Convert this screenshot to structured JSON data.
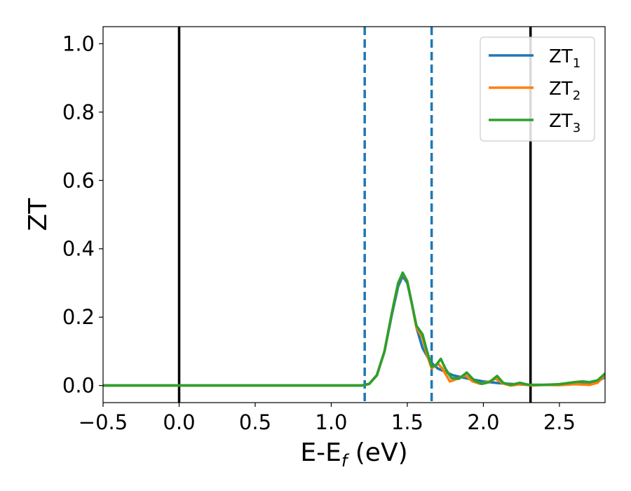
{
  "chart_data": {
    "type": "line",
    "title": "",
    "xlabel": {
      "main": "E-E",
      "sub": "f",
      "unit": " (eV)"
    },
    "ylabel": "ZT",
    "xlim": [
      -0.5,
      2.8
    ],
    "ylim": [
      -0.05,
      1.05
    ],
    "x_ticks": [
      -0.5,
      0.0,
      0.5,
      1.0,
      1.5,
      2.0,
      2.5
    ],
    "x_tick_labels": [
      "−0.5",
      "0.0",
      "0.5",
      "1.0",
      "1.5",
      "2.0",
      "2.5"
    ],
    "y_ticks": [
      0.0,
      0.2,
      0.4,
      0.6,
      0.8,
      1.0
    ],
    "y_tick_labels": [
      "0.0",
      "0.2",
      "0.4",
      "0.6",
      "0.8",
      "1.0"
    ],
    "grid": false,
    "legend_position": "top-right",
    "vlines": [
      {
        "x": 0.0,
        "style": "solid",
        "color": "#000000"
      },
      {
        "x": 2.31,
        "style": "solid",
        "color": "#000000"
      },
      {
        "x": 1.22,
        "style": "dashed",
        "color": "#1f77b4"
      },
      {
        "x": 1.66,
        "style": "dashed",
        "color": "#1f77b4"
      }
    ],
    "series": [
      {
        "name": "ZT",
        "sub": "1",
        "color": "#1f77b4",
        "points": [
          [
            -0.5,
            0
          ],
          [
            1.2,
            0
          ],
          [
            1.25,
            0.005
          ],
          [
            1.3,
            0.03
          ],
          [
            1.35,
            0.1
          ],
          [
            1.4,
            0.21
          ],
          [
            1.44,
            0.29
          ],
          [
            1.47,
            0.32
          ],
          [
            1.5,
            0.3
          ],
          [
            1.53,
            0.24
          ],
          [
            1.56,
            0.17
          ],
          [
            1.6,
            0.11
          ],
          [
            1.65,
            0.07
          ],
          [
            1.7,
            0.05
          ],
          [
            1.8,
            0.03
          ],
          [
            1.9,
            0.02
          ],
          [
            2.0,
            0.012
          ],
          [
            2.1,
            0.007
          ],
          [
            2.2,
            0.004
          ],
          [
            2.3,
            0.002
          ],
          [
            2.4,
            0.002
          ],
          [
            2.5,
            0.003
          ],
          [
            2.6,
            0.005
          ],
          [
            2.7,
            0.008
          ],
          [
            2.75,
            0.012
          ],
          [
            2.8,
            0.025
          ]
        ]
      },
      {
        "name": "ZT",
        "sub": "2",
        "color": "#ff7f0e",
        "points": [
          [
            -0.5,
            0
          ],
          [
            1.2,
            0
          ],
          [
            1.25,
            0.005
          ],
          [
            1.3,
            0.03
          ],
          [
            1.35,
            0.1
          ],
          [
            1.4,
            0.215
          ],
          [
            1.44,
            0.3
          ],
          [
            1.47,
            0.328
          ],
          [
            1.5,
            0.305
          ],
          [
            1.53,
            0.24
          ],
          [
            1.56,
            0.17
          ],
          [
            1.6,
            0.14
          ],
          [
            1.63,
            0.09
          ],
          [
            1.66,
            0.05
          ],
          [
            1.7,
            0.065
          ],
          [
            1.73,
            0.05
          ],
          [
            1.78,
            0.012
          ],
          [
            1.83,
            0.02
          ],
          [
            1.88,
            0.03
          ],
          [
            1.93,
            0.012
          ],
          [
            1.98,
            0.005
          ],
          [
            2.03,
            0.01
          ],
          [
            2.08,
            0.02
          ],
          [
            2.13,
            0.006
          ],
          [
            2.18,
            0.0
          ],
          [
            2.25,
            0.004
          ],
          [
            2.32,
            0.0
          ],
          [
            2.4,
            0.002
          ],
          [
            2.5,
            0.001
          ],
          [
            2.6,
            0.004
          ],
          [
            2.7,
            0.002
          ],
          [
            2.75,
            0.008
          ],
          [
            2.8,
            0.03
          ]
        ]
      },
      {
        "name": "ZT",
        "sub": "3",
        "color": "#2ca02c",
        "points": [
          [
            -0.5,
            0
          ],
          [
            1.2,
            0
          ],
          [
            1.25,
            0.005
          ],
          [
            1.3,
            0.03
          ],
          [
            1.35,
            0.1
          ],
          [
            1.4,
            0.215
          ],
          [
            1.44,
            0.3
          ],
          [
            1.47,
            0.33
          ],
          [
            1.5,
            0.305
          ],
          [
            1.53,
            0.24
          ],
          [
            1.56,
            0.175
          ],
          [
            1.6,
            0.15
          ],
          [
            1.63,
            0.1
          ],
          [
            1.66,
            0.055
          ],
          [
            1.69,
            0.06
          ],
          [
            1.72,
            0.078
          ],
          [
            1.75,
            0.05
          ],
          [
            1.79,
            0.022
          ],
          [
            1.84,
            0.02
          ],
          [
            1.89,
            0.038
          ],
          [
            1.94,
            0.015
          ],
          [
            1.99,
            0.005
          ],
          [
            2.04,
            0.01
          ],
          [
            2.09,
            0.028
          ],
          [
            2.13,
            0.008
          ],
          [
            2.18,
            0.002
          ],
          [
            2.24,
            0.008
          ],
          [
            2.3,
            0.002
          ],
          [
            2.4,
            0.002
          ],
          [
            2.5,
            0.004
          ],
          [
            2.6,
            0.01
          ],
          [
            2.65,
            0.012
          ],
          [
            2.7,
            0.01
          ],
          [
            2.75,
            0.015
          ],
          [
            2.8,
            0.035
          ]
        ]
      }
    ]
  }
}
